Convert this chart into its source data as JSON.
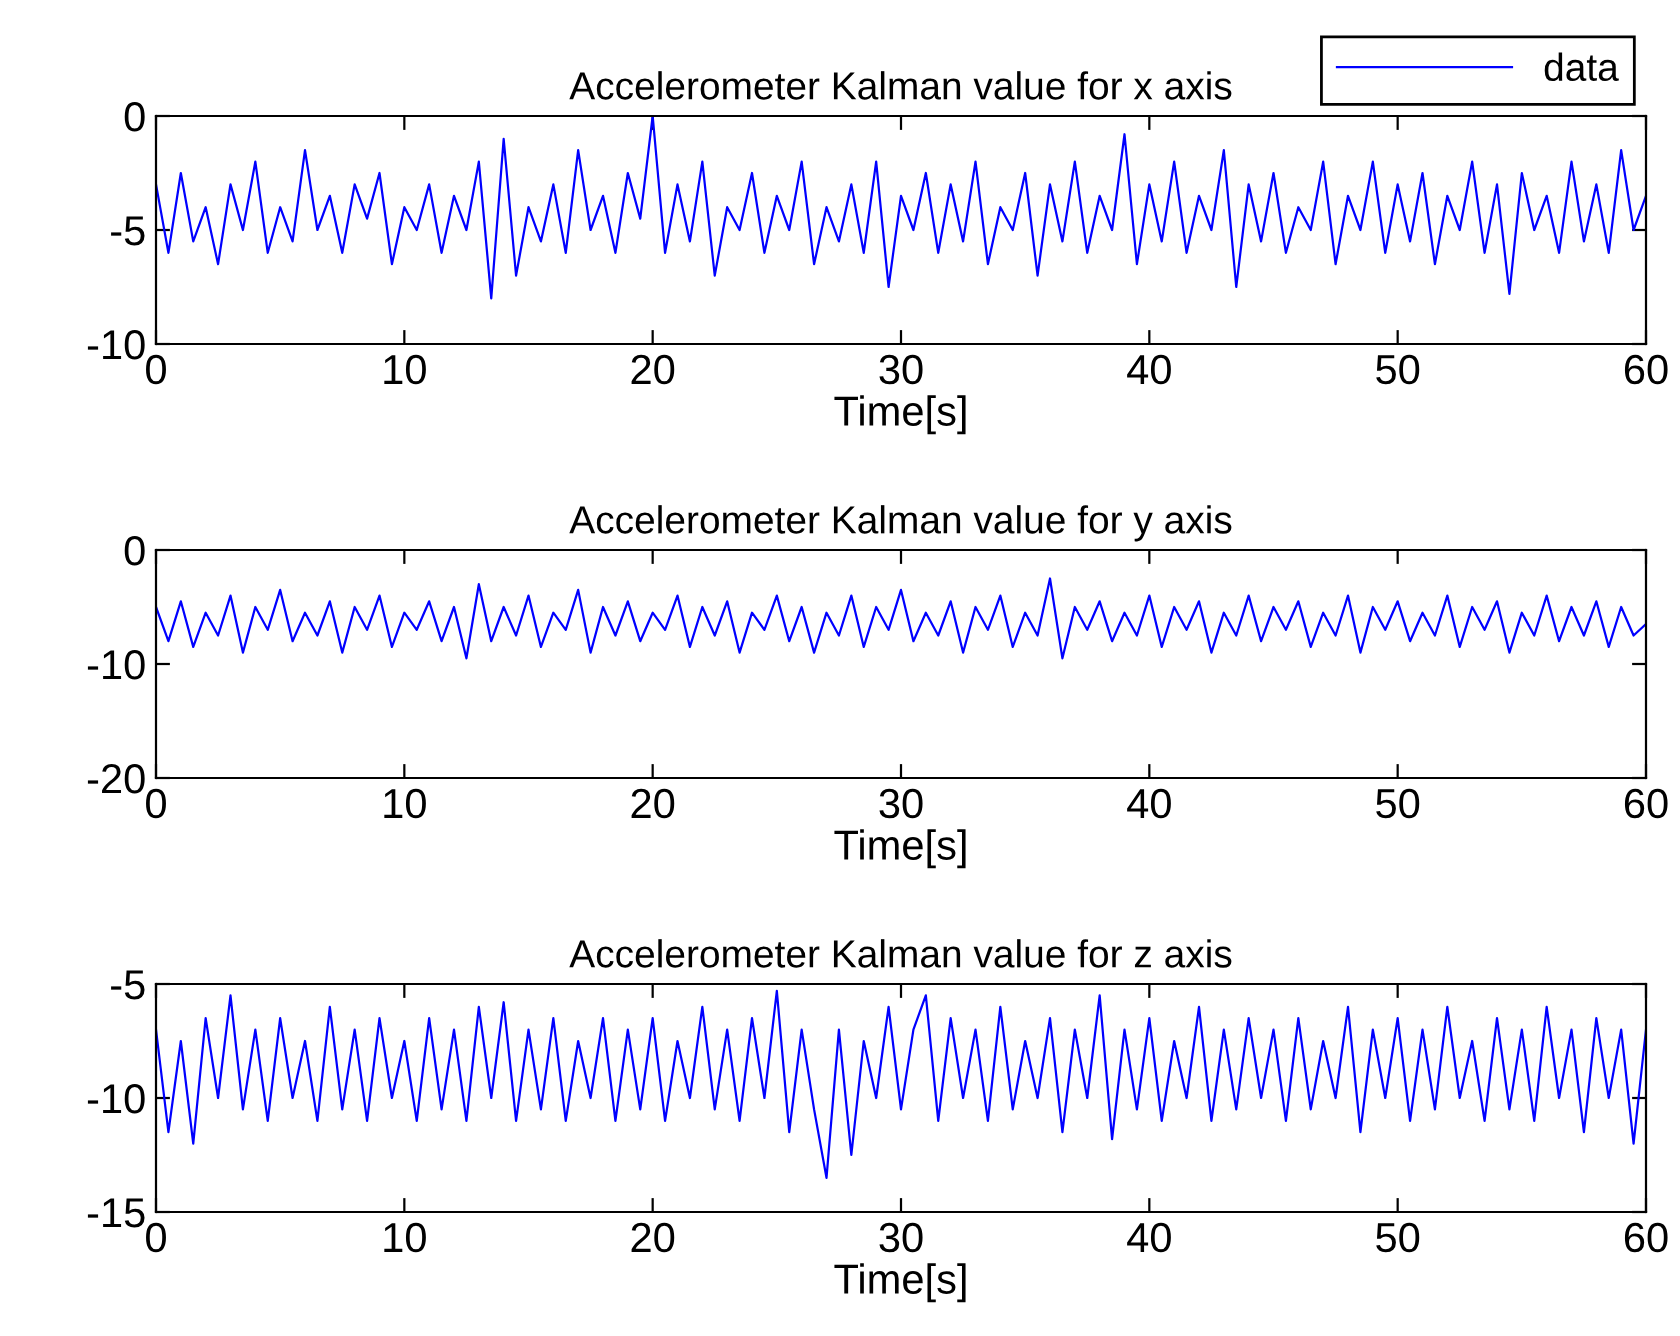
{
  "chart_data": [
    {
      "type": "line",
      "title": "Accelerometer Kalman value for x axis",
      "xlabel": "Time[s]",
      "x": [
        0,
        0.5,
        1,
        1.5,
        2,
        2.5,
        3,
        3.5,
        4,
        4.5,
        5,
        5.5,
        6,
        6.5,
        7,
        7.5,
        8,
        8.5,
        9,
        9.5,
        10,
        10.5,
        11,
        11.5,
        12,
        12.5,
        13,
        13.5,
        14,
        14.5,
        15,
        15.5,
        16,
        16.5,
        17,
        17.5,
        18,
        18.5,
        19,
        19.5,
        20,
        20.5,
        21,
        21.5,
        22,
        22.5,
        23,
        23.5,
        24,
        24.5,
        25,
        25.5,
        26,
        26.5,
        27,
        27.5,
        28,
        28.5,
        29,
        29.5,
        30,
        30.5,
        31,
        31.5,
        32,
        32.5,
        33,
        33.5,
        34,
        34.5,
        35,
        35.5,
        36,
        36.5,
        37,
        37.5,
        38,
        38.5,
        39,
        39.5,
        40,
        40.5,
        41,
        41.5,
        42,
        42.5,
        43,
        43.5,
        44,
        44.5,
        45,
        45.5,
        46,
        46.5,
        47,
        47.5,
        48,
        48.5,
        49,
        49.5,
        50,
        50.5,
        51,
        51.5,
        52,
        52.5,
        53,
        53.5,
        54,
        54.5,
        55,
        55.5,
        56,
        56.5,
        57,
        57.5,
        58,
        58.5,
        59,
        59.5,
        60
      ],
      "series": [
        {
          "name": "data",
          "color": "#0000ff",
          "values": [
            -3,
            -6,
            -2.5,
            -5.5,
            -4,
            -6.5,
            -3,
            -5,
            -2,
            -6,
            -4,
            -5.5,
            -1.5,
            -5,
            -3.5,
            -6,
            -3,
            -4.5,
            -2.5,
            -6.5,
            -4,
            -5,
            -3,
            -6,
            -3.5,
            -5,
            -2,
            -8,
            -1,
            -7,
            -4,
            -5.5,
            -3,
            -6,
            -1.5,
            -5,
            -3.5,
            -6,
            -2.5,
            -4.5,
            0,
            -6,
            -3,
            -5.5,
            -2,
            -7,
            -4,
            -5,
            -2.5,
            -6,
            -3.5,
            -5,
            -2,
            -6.5,
            -4,
            -5.5,
            -3,
            -6,
            -2,
            -7.5,
            -3.5,
            -5,
            -2.5,
            -6,
            -3,
            -5.5,
            -2,
            -6.5,
            -4,
            -5,
            -2.5,
            -7,
            -3,
            -5.5,
            -2,
            -6,
            -3.5,
            -5,
            -0.8,
            -6.5,
            -3,
            -5.5,
            -2,
            -6,
            -3.5,
            -5,
            -1.5,
            -7.5,
            -3,
            -5.5,
            -2.5,
            -6,
            -4,
            -5,
            -2,
            -6.5,
            -3.5,
            -5,
            -2,
            -6,
            -3,
            -5.5,
            -2.5,
            -6.5,
            -3.5,
            -5,
            -2,
            -6,
            -3,
            -7.8,
            -2.5,
            -5,
            -3.5,
            -6,
            -2,
            -5.5,
            -3,
            -6,
            -1.5,
            -5,
            -3.5
          ]
        }
      ],
      "xlim": [
        0,
        60
      ],
      "xticks": [
        0,
        10,
        20,
        30,
        40,
        50,
        60
      ],
      "ylim": [
        -10,
        0
      ],
      "yticks": [
        -10,
        -5,
        0
      ],
      "legend": "top right",
      "grid": false
    },
    {
      "type": "line",
      "title": "Accelerometer Kalman value for y axis",
      "xlabel": "Time[s]",
      "x": [
        0,
        0.5,
        1,
        1.5,
        2,
        2.5,
        3,
        3.5,
        4,
        4.5,
        5,
        5.5,
        6,
        6.5,
        7,
        7.5,
        8,
        8.5,
        9,
        9.5,
        10,
        10.5,
        11,
        11.5,
        12,
        12.5,
        13,
        13.5,
        14,
        14.5,
        15,
        15.5,
        16,
        16.5,
        17,
        17.5,
        18,
        18.5,
        19,
        19.5,
        20,
        20.5,
        21,
        21.5,
        22,
        22.5,
        23,
        23.5,
        24,
        24.5,
        25,
        25.5,
        26,
        26.5,
        27,
        27.5,
        28,
        28.5,
        29,
        29.5,
        30,
        30.5,
        31,
        31.5,
        32,
        32.5,
        33,
        33.5,
        34,
        34.5,
        35,
        35.5,
        36,
        36.5,
        37,
        37.5,
        38,
        38.5,
        39,
        39.5,
        40,
        40.5,
        41,
        41.5,
        42,
        42.5,
        43,
        43.5,
        44,
        44.5,
        45,
        45.5,
        46,
        46.5,
        47,
        47.5,
        48,
        48.5,
        49,
        49.5,
        50,
        50.5,
        51,
        51.5,
        52,
        52.5,
        53,
        53.5,
        54,
        54.5,
        55,
        55.5,
        56,
        56.5,
        57,
        57.5,
        58,
        58.5,
        59,
        59.5,
        60
      ],
      "series": [
        {
          "color": "#0000ff",
          "values": [
            -5,
            -8,
            -4.5,
            -8.5,
            -5.5,
            -7.5,
            -4,
            -9,
            -5,
            -7,
            -3.5,
            -8,
            -5.5,
            -7.5,
            -4.5,
            -9,
            -5,
            -7,
            -4,
            -8.5,
            -5.5,
            -7,
            -4.5,
            -8,
            -5,
            -9.5,
            -3,
            -8,
            -5,
            -7.5,
            -4,
            -8.5,
            -5.5,
            -7,
            -3.5,
            -9,
            -5,
            -7.5,
            -4.5,
            -8,
            -5.5,
            -7,
            -4,
            -8.5,
            -5,
            -7.5,
            -4.5,
            -9,
            -5.5,
            -7,
            -4,
            -8,
            -5,
            -9,
            -5.5,
            -7.5,
            -4,
            -8.5,
            -5,
            -7,
            -3.5,
            -8,
            -5.5,
            -7.5,
            -4.5,
            -9,
            -5,
            -7,
            -4,
            -8.5,
            -5.5,
            -7.5,
            -2.5,
            -9.5,
            -5,
            -7,
            -4.5,
            -8,
            -5.5,
            -7.5,
            -4,
            -8.5,
            -5,
            -7,
            -4.5,
            -9,
            -5.5,
            -7.5,
            -4,
            -8,
            -5,
            -7,
            -4.5,
            -8.5,
            -5.5,
            -7.5,
            -4,
            -9,
            -5,
            -7,
            -4.5,
            -8,
            -5.5,
            -7.5,
            -4,
            -8.5,
            -5,
            -7,
            -4.5,
            -9,
            -5.5,
            -7.5,
            -4,
            -8,
            -5,
            -7.5,
            -4.5,
            -8.5,
            -5,
            -7.5,
            -6.5
          ]
        }
      ],
      "xlim": [
        0,
        60
      ],
      "xticks": [
        0,
        10,
        20,
        30,
        40,
        50,
        60
      ],
      "ylim": [
        -20,
        0
      ],
      "yticks": [
        -20,
        -10,
        0
      ],
      "grid": false
    },
    {
      "type": "line",
      "title": "Accelerometer Kalman value for z axis",
      "xlabel": "Time[s]",
      "x": [
        0,
        0.5,
        1,
        1.5,
        2,
        2.5,
        3,
        3.5,
        4,
        4.5,
        5,
        5.5,
        6,
        6.5,
        7,
        7.5,
        8,
        8.5,
        9,
        9.5,
        10,
        10.5,
        11,
        11.5,
        12,
        12.5,
        13,
        13.5,
        14,
        14.5,
        15,
        15.5,
        16,
        16.5,
        17,
        17.5,
        18,
        18.5,
        19,
        19.5,
        20,
        20.5,
        21,
        21.5,
        22,
        22.5,
        23,
        23.5,
        24,
        24.5,
        25,
        25.5,
        26,
        26.5,
        27,
        27.5,
        28,
        28.5,
        29,
        29.5,
        30,
        30.5,
        31,
        31.5,
        32,
        32.5,
        33,
        33.5,
        34,
        34.5,
        35,
        35.5,
        36,
        36.5,
        37,
        37.5,
        38,
        38.5,
        39,
        39.5,
        40,
        40.5,
        41,
        41.5,
        42,
        42.5,
        43,
        43.5,
        44,
        44.5,
        45,
        45.5,
        46,
        46.5,
        47,
        47.5,
        48,
        48.5,
        49,
        49.5,
        50,
        50.5,
        51,
        51.5,
        52,
        52.5,
        53,
        53.5,
        54,
        54.5,
        55,
        55.5,
        56,
        56.5,
        57,
        57.5,
        58,
        58.5,
        59,
        59.5,
        60
      ],
      "series": [
        {
          "color": "#0000ff",
          "values": [
            -7,
            -11.5,
            -7.5,
            -12,
            -6.5,
            -10,
            -5.5,
            -10.5,
            -7,
            -11,
            -6.5,
            -10,
            -7.5,
            -11,
            -6,
            -10.5,
            -7,
            -11,
            -6.5,
            -10,
            -7.5,
            -11,
            -6.5,
            -10.5,
            -7,
            -11,
            -6,
            -10,
            -5.8,
            -11,
            -7,
            -10.5,
            -6.5,
            -11,
            -7.5,
            -10,
            -6.5,
            -11,
            -7,
            -10.5,
            -6.5,
            -11,
            -7.5,
            -10,
            -6,
            -10.5,
            -7,
            -11,
            -6.5,
            -10,
            -5.3,
            -11.5,
            -7,
            -10.5,
            -13.5,
            -7,
            -12.5,
            -7.5,
            -10,
            -6,
            -10.5,
            -7,
            -5.5,
            -11,
            -6.5,
            -10,
            -7,
            -11,
            -6,
            -10.5,
            -7.5,
            -10,
            -6.5,
            -11.5,
            -7,
            -10,
            -5.5,
            -11.8,
            -7,
            -10.5,
            -6.5,
            -11,
            -7.5,
            -10,
            -6,
            -11,
            -7,
            -10.5,
            -6.5,
            -10,
            -7,
            -11,
            -6.5,
            -10.5,
            -7.5,
            -10,
            -6,
            -11.5,
            -7,
            -10,
            -6.5,
            -11,
            -7,
            -10.5,
            -6,
            -10,
            -7.5,
            -11,
            -6.5,
            -10.5,
            -7,
            -11,
            -6,
            -10,
            -7,
            -11.5,
            -6.5,
            -10,
            -7,
            -12,
            -7
          ]
        }
      ],
      "xlim": [
        0,
        60
      ],
      "xticks": [
        0,
        10,
        20,
        30,
        40,
        50,
        60
      ],
      "ylim": [
        -15,
        -5
      ],
      "yticks": [
        -15,
        -10,
        -5
      ],
      "grid": false
    }
  ]
}
